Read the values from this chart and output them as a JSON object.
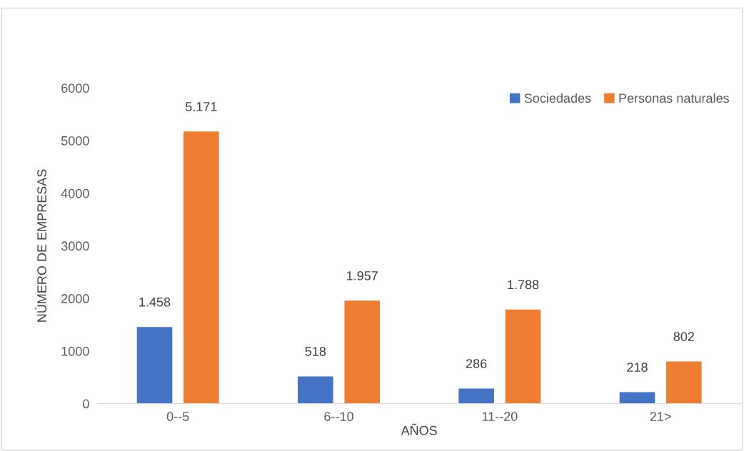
{
  "chart_data": {
    "type": "bar",
    "xlabel": "AÑOS",
    "ylabel": "NÚMERO DE EMPRESAS",
    "categories": [
      "0--5",
      "6--10",
      "11--20",
      "21>"
    ],
    "series": [
      {
        "name": "Sociedades",
        "color": "#4472c4",
        "values": [
          1458,
          518,
          286,
          218
        ],
        "value_labels": [
          "1.458",
          "518",
          "286",
          "218"
        ]
      },
      {
        "name": "Personas naturales",
        "color": "#ed7d31",
        "values": [
          5171,
          1957,
          1788,
          802
        ],
        "value_labels": [
          "5.171",
          "1.957",
          "1.788",
          "802"
        ]
      }
    ],
    "ylim": [
      0,
      6000
    ],
    "yticks": [
      0,
      1000,
      2000,
      3000,
      4000,
      5000,
      6000
    ],
    "grid": false,
    "legend": "top right"
  }
}
